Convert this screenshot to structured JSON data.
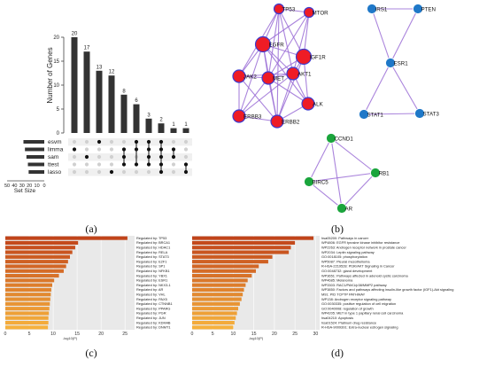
{
  "panels": {
    "a": "(a)",
    "b": "(b)",
    "c": "(c)",
    "d": "(d)"
  },
  "colors": {
    "upset_bar": "#333333",
    "dot_on": "#111111",
    "dot_off": "#d0d0d0",
    "node_red": "#ee1c25",
    "node_blue": "#1f78c8",
    "node_green": "#1aa53c",
    "edge": "#9b6fd6",
    "bar_dark": "#c1441a",
    "bar_light": "#f6b13d",
    "panel_bg": "#e9e9e9"
  },
  "chart_data": [
    {
      "panel": "a",
      "type": "bar",
      "subtype": "upset",
      "ylabel": "Number of Genes",
      "ylim": [
        0,
        20
      ],
      "yticks": [
        0,
        5,
        10,
        15,
        20
      ],
      "values": [
        20,
        17,
        13,
        12,
        8,
        6,
        3,
        2,
        1,
        1
      ],
      "sets": [
        "esvm",
        "limma",
        "sam",
        "ttest",
        "lasso"
      ],
      "set_size_label": "Set Size",
      "set_size_ticks": [
        "50",
        "40",
        "30",
        "20",
        "10",
        "0"
      ],
      "set_sizes": [
        28,
        26,
        24,
        22,
        21
      ],
      "set_size_xlim": [
        0,
        50
      ],
      "intersections": [
        [
          1
        ],
        [
          2
        ],
        [
          0
        ],
        [
          4
        ],
        [
          1,
          2,
          3
        ],
        [
          0,
          1,
          3
        ],
        [
          0,
          1,
          2,
          3
        ],
        [
          0,
          1,
          2,
          3,
          4
        ],
        [
          1,
          2
        ],
        [
          3,
          4
        ]
      ]
    },
    {
      "panel": "b",
      "type": "network",
      "nodes": [
        {
          "id": "TP53",
          "group": "red",
          "size": "small"
        },
        {
          "id": "MTOR",
          "group": "red",
          "size": "small"
        },
        {
          "id": "EGFR",
          "group": "red",
          "size": "large"
        },
        {
          "id": "IGF1R",
          "group": "red",
          "size": "large"
        },
        {
          "id": "JAK2",
          "group": "red",
          "size": "medium"
        },
        {
          "id": "MET",
          "group": "red",
          "size": "medium"
        },
        {
          "id": "AKT1",
          "group": "red",
          "size": "medium"
        },
        {
          "id": "ALK",
          "group": "red",
          "size": "medium"
        },
        {
          "id": "ERBB3",
          "group": "red",
          "size": "medium"
        },
        {
          "id": "ERBB2",
          "group": "red",
          "size": "medium"
        },
        {
          "id": "IRS1",
          "group": "blue",
          "size": "small"
        },
        {
          "id": "PTEN",
          "group": "blue",
          "size": "small"
        },
        {
          "id": "ESR1",
          "group": "blue",
          "size": "small"
        },
        {
          "id": "STAT1",
          "group": "blue",
          "size": "small"
        },
        {
          "id": "STAT3",
          "group": "blue",
          "size": "small"
        },
        {
          "id": "CCND1",
          "group": "green",
          "size": "small"
        },
        {
          "id": "RB1",
          "group": "green",
          "size": "small"
        },
        {
          "id": "BIRC5",
          "group": "green",
          "size": "small"
        },
        {
          "id": "AR",
          "group": "green",
          "size": "small"
        }
      ],
      "edges": [
        [
          "TP53",
          "MTOR"
        ],
        [
          "TP53",
          "EGFR"
        ],
        [
          "TP53",
          "IGF1R"
        ],
        [
          "TP53",
          "JAK2"
        ],
        [
          "TP53",
          "MET"
        ],
        [
          "TP53",
          "AKT1"
        ],
        [
          "TP53",
          "ERBB2"
        ],
        [
          "MTOR",
          "EGFR"
        ],
        [
          "MTOR",
          "IGF1R"
        ],
        [
          "MTOR",
          "AKT1"
        ],
        [
          "MTOR",
          "MET"
        ],
        [
          "EGFR",
          "IGF1R"
        ],
        [
          "EGFR",
          "JAK2"
        ],
        [
          "EGFR",
          "MET"
        ],
        [
          "EGFR",
          "AKT1"
        ],
        [
          "EGFR",
          "ERBB3"
        ],
        [
          "EGFR",
          "ERBB2"
        ],
        [
          "EGFR",
          "ALK"
        ],
        [
          "IGF1R",
          "MET"
        ],
        [
          "IGF1R",
          "AKT1"
        ],
        [
          "IGF1R",
          "ALK"
        ],
        [
          "IGF1R",
          "ERBB2"
        ],
        [
          "JAK2",
          "MET"
        ],
        [
          "JAK2",
          "ERBB3"
        ],
        [
          "JAK2",
          "ERBB2"
        ],
        [
          "JAK2",
          "AKT1"
        ],
        [
          "MET",
          "AKT1"
        ],
        [
          "MET",
          "ERBB3"
        ],
        [
          "MET",
          "ERBB2"
        ],
        [
          "MET",
          "ALK"
        ],
        [
          "AKT1",
          "ERBB2"
        ],
        [
          "AKT1",
          "ALK"
        ],
        [
          "AKT1",
          "ERBB3"
        ],
        [
          "ERBB3",
          "ERBB2"
        ],
        [
          "ERBB2",
          "ALK"
        ],
        [
          "IRS1",
          "PTEN"
        ],
        [
          "IRS1",
          "ESR1"
        ],
        [
          "PTEN",
          "ESR1"
        ],
        [
          "ESR1",
          "STAT1"
        ],
        [
          "ESR1",
          "STAT3"
        ],
        [
          "STAT1",
          "STAT3"
        ],
        [
          "CCND1",
          "RB1"
        ],
        [
          "CCND1",
          "BIRC5"
        ],
        [
          "CCND1",
          "AR"
        ],
        [
          "RB1",
          "BIRC5"
        ],
        [
          "RB1",
          "AR"
        ],
        [
          "BIRC5",
          "AR"
        ]
      ]
    },
    {
      "panel": "c",
      "type": "bar",
      "orientation": "horizontal",
      "xlabel": "-log10(P)",
      "xlim": [
        0,
        27
      ],
      "xticks": [
        0,
        5,
        10,
        15,
        20,
        25
      ],
      "categories": [
        "Regulated by: TP53",
        "Regulated by: BRCA1",
        "Regulated by: HDAC1",
        "Regulated by: RELA",
        "Regulated by: STAT3",
        "Regulated by: E2F1",
        "Regulated by: SP1",
        "Regulated by: NFKB1",
        "Regulated by: YBX1",
        "Regulated by: ESR1",
        "Regulated by: NKX3-1",
        "Regulated by: AR",
        "Regulated by: VHL",
        "Regulated by: PAX5",
        "Regulated by: CTNNB1",
        "Regulated by: PPARG",
        "Regulated by: PGR",
        "Regulated by: JUN",
        "Regulated by: KDM4B",
        "Regulated by: DNMT1"
      ],
      "values": [
        25.5,
        15.2,
        14.6,
        14.0,
        13.5,
        13.1,
        12.7,
        12.2,
        11.2,
        10.2,
        9.8,
        9.6,
        9.5,
        9.4,
        9.3,
        9.2,
        9.1,
        9.0,
        9.0,
        8.9
      ]
    },
    {
      "panel": "d",
      "type": "bar",
      "orientation": "horizontal",
      "xlabel": "-log10(P)",
      "xlim": [
        0,
        31
      ],
      "xticks": [
        0,
        5,
        10,
        15,
        20,
        25,
        30
      ],
      "categories": [
        "hsa05200: Pathways in cancer",
        "WP4806: EGFR tyrosine kinase inhibitor resistance",
        "WP2263: Androgen receptor network in prostate cancer",
        "WP2034: Leptin signaling pathway",
        "GO:0018105: phosphorylation",
        "WP5087: Pleural mesothelioma",
        "R-HSA-2219528: PI3K/AKT Signaling in Cancer",
        "GO:0048732: gland development",
        "WP3651: Pathways affected in adenoid cystic carcinoma",
        "WP4685: Melanoma",
        "WP3303: RAC1/PAK1/p38/MMP2 pathway",
        "WP3850: Factors and pathways affecting insulin-like growth factor (IGF1)-Akt signaling",
        "M91: PID TCPTP PATHWAY",
        "WP138: Androgen receptor signaling pathway",
        "GO:0030335: positive regulation of cell migration",
        "GO:0040008: regulation of growth",
        "WP4205: MET in type 1 papillary renal cell carcinoma",
        "hsa04210: Apoptosis",
        "hsa01524: Platinum drug resistance",
        "R-HSA-9009391: Extra-nuclear estrogen signaling"
      ],
      "values": [
        29.5,
        25.0,
        24.0,
        23.5,
        19.5,
        18.5,
        16.2,
        15.5,
        14.5,
        13.5,
        13.0,
        12.6,
        12.3,
        12.0,
        11.6,
        11.2,
        10.9,
        10.6,
        10.3,
        10.0
      ]
    }
  ]
}
